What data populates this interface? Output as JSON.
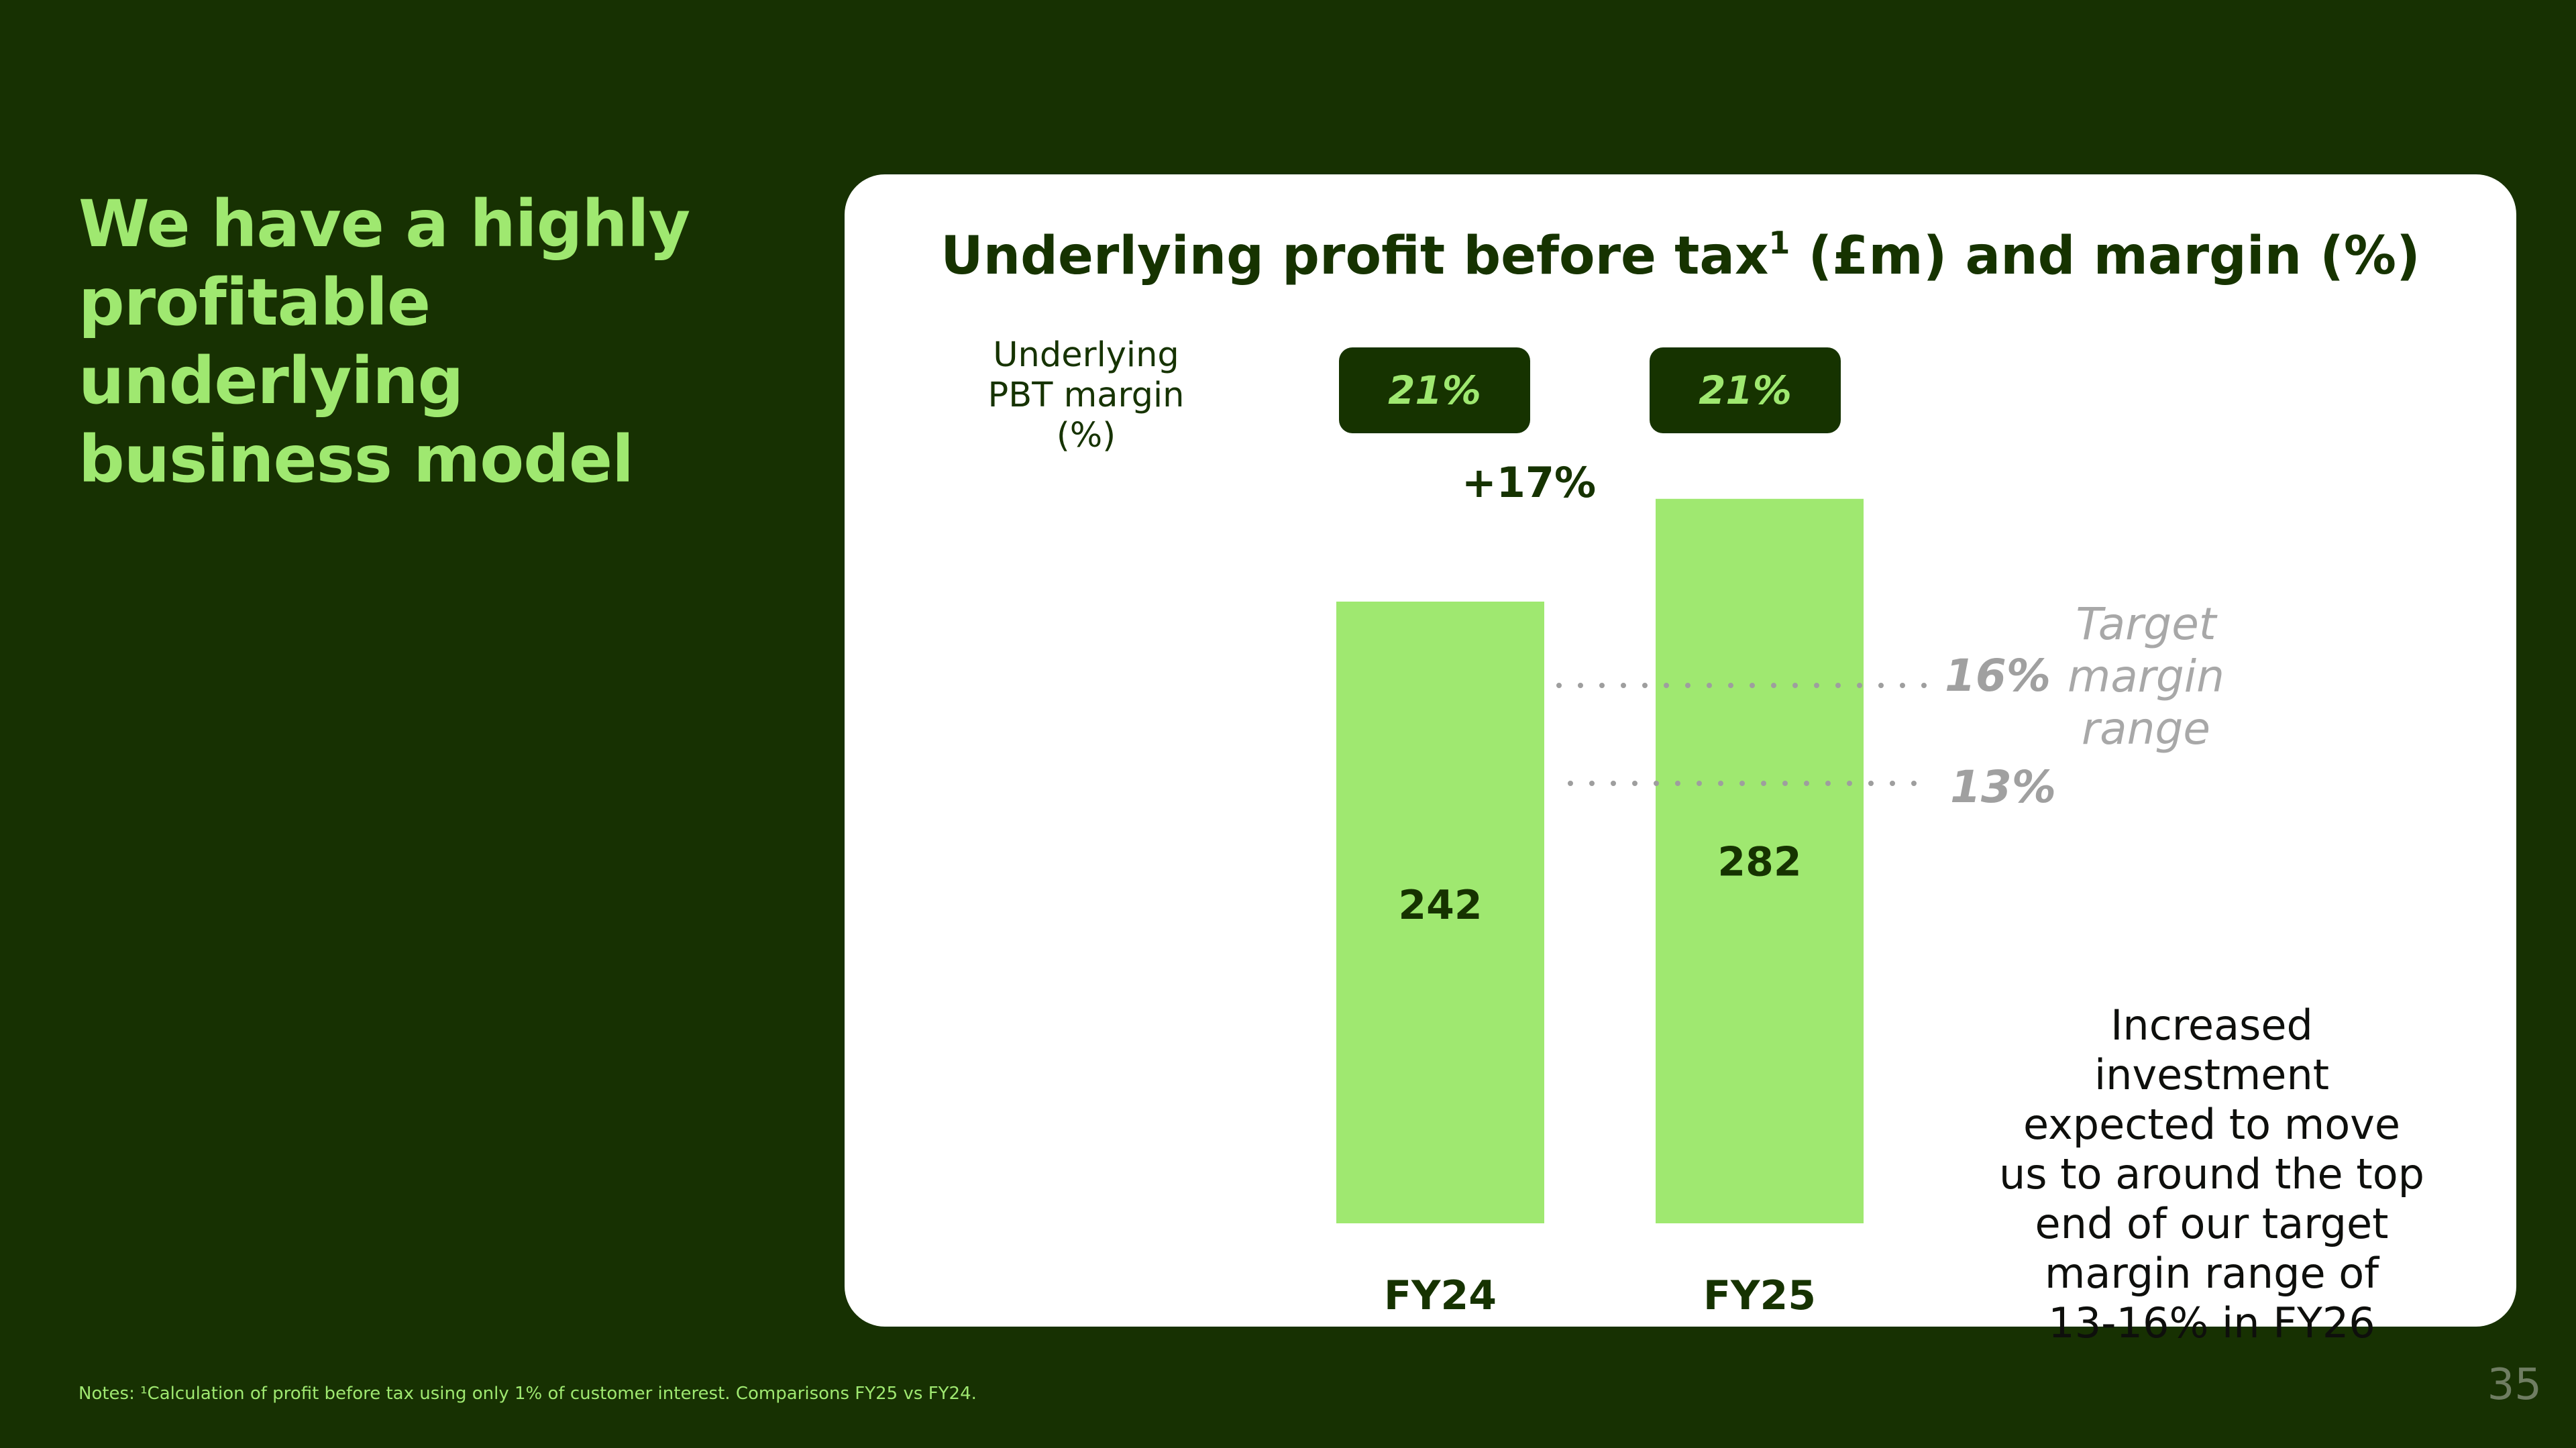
{
  "headline": {
    "line1": "We have a highly",
    "line2": "profitable underlying",
    "line3": "business model"
  },
  "chart_data": {
    "type": "bar",
    "title": "Underlying profit before tax",
    "title_superscript": "1",
    "title_suffix": " (£m) and margin (%)",
    "categories": [
      "FY24",
      "FY25"
    ],
    "values": [
      242,
      282
    ],
    "value_labels": [
      "242",
      "282"
    ],
    "ylim": [
      0,
      300
    ],
    "margin_row": {
      "label": [
        "Underlying",
        "PBT margin",
        "(%)"
      ],
      "values": [
        "21%",
        "21%"
      ]
    },
    "growth_label": "+17%",
    "reference_lines": [
      {
        "label": "16%",
        "value": 16
      },
      {
        "label": "13%",
        "value": 13
      }
    ],
    "reference_caption": [
      "Target",
      "margin",
      "range"
    ],
    "annotation": [
      "Increased",
      "investment",
      "expected to move",
      "us to around the top",
      "end of our target",
      "margin range of",
      "13-16% in FY26"
    ],
    "colors": {
      "bar": "#9fe870",
      "text": "#163300",
      "reference": "#9e9e9e"
    }
  },
  "footnote": "Notes: ¹Calculation of profit before tax using only 1% of customer interest.  Comparisons FY25 vs FY24.",
  "page_number": "35"
}
